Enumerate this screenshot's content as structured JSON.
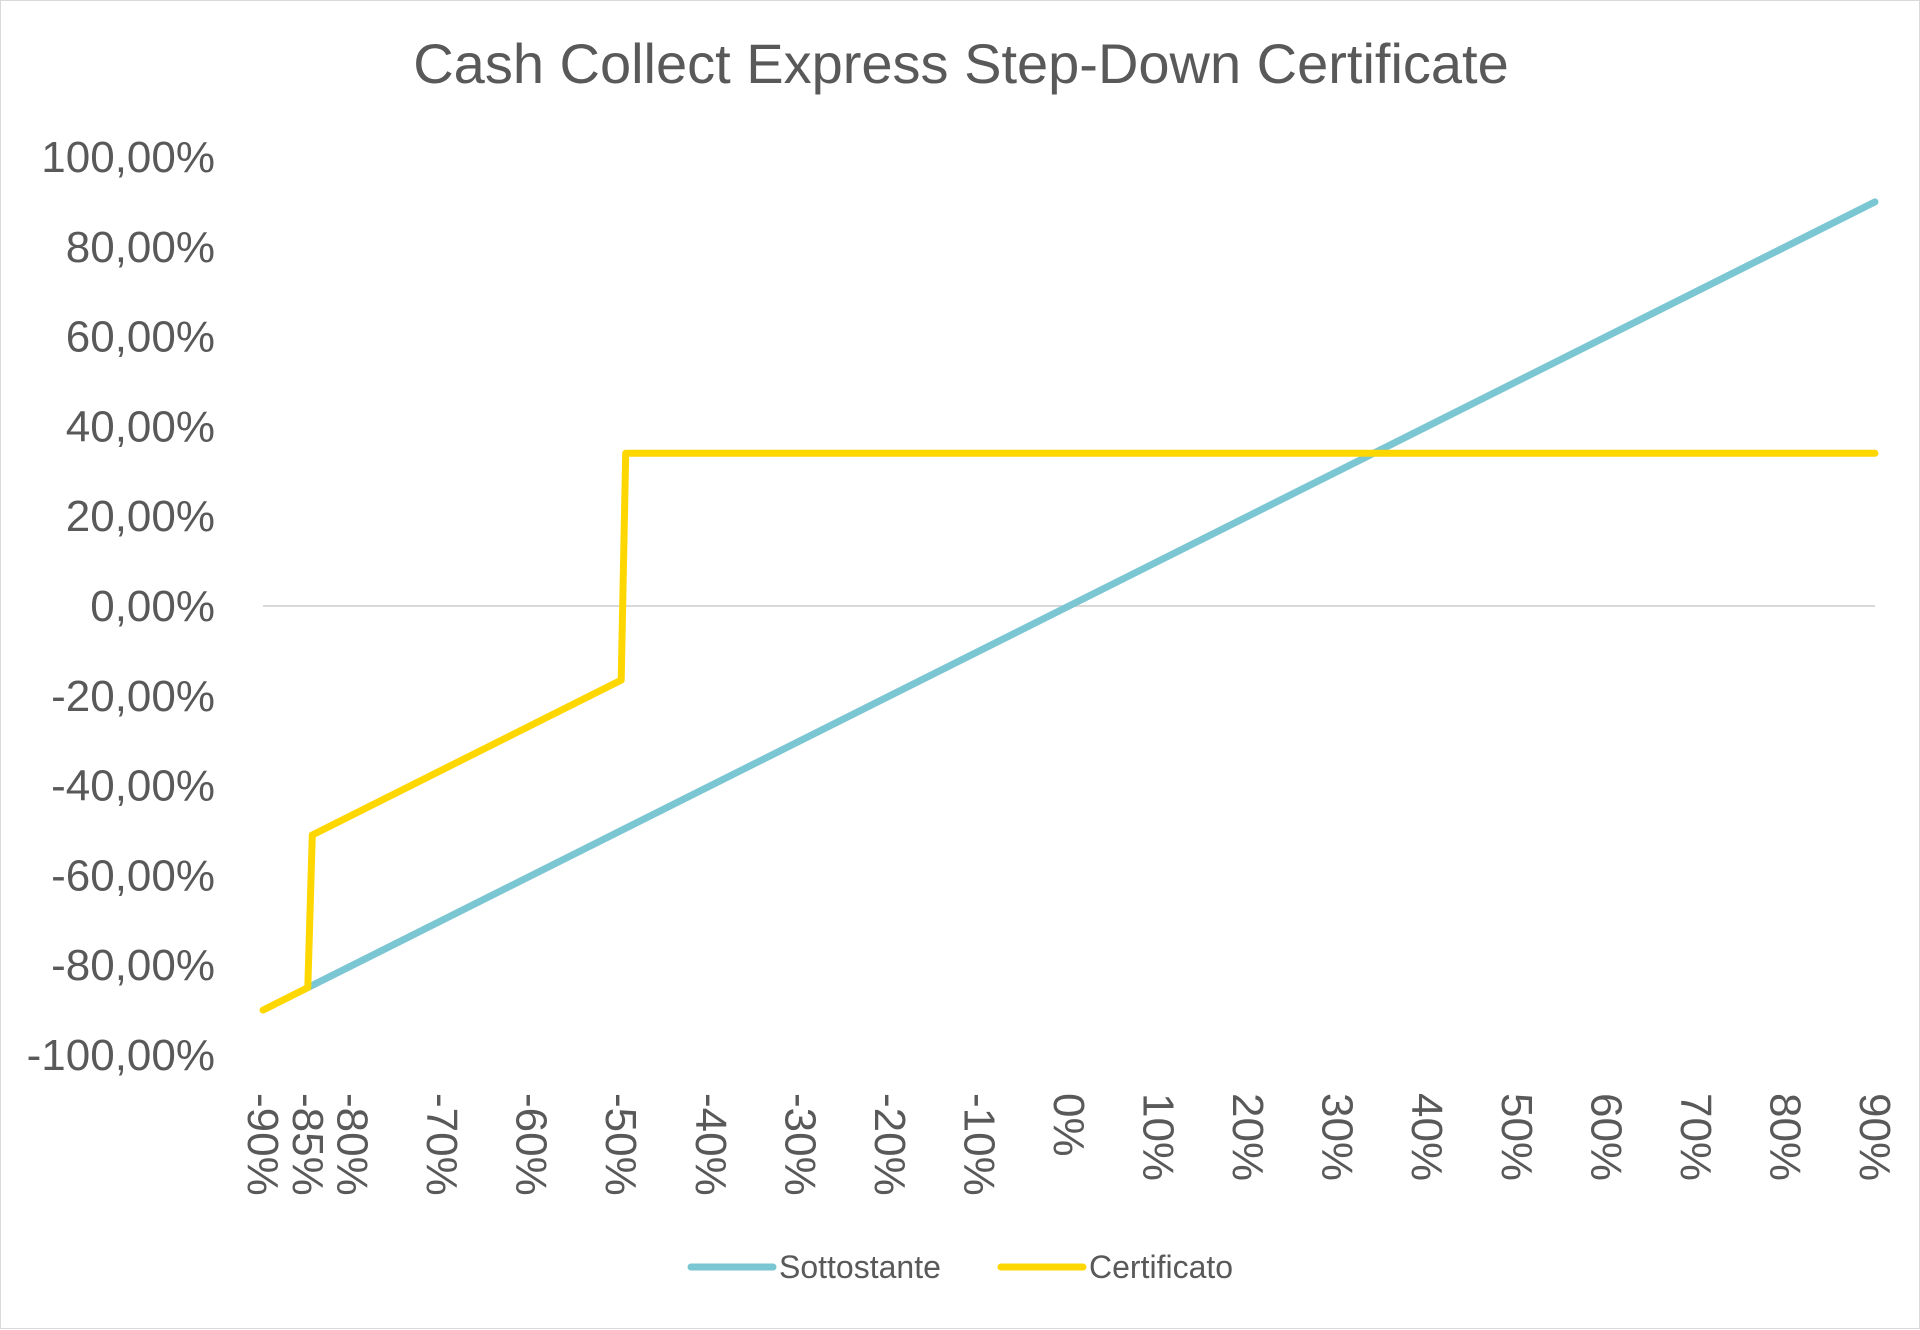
{
  "chart_data": {
    "type": "line",
    "title": "Cash Collect Express Step-Down Certificate",
    "x": [
      -90,
      -85,
      -84.5,
      -50,
      -49.5,
      90
    ],
    "x_tick_values": [
      -90,
      -85,
      -80,
      -70,
      -60,
      -50,
      -40,
      -30,
      -20,
      -10,
      0,
      10,
      20,
      30,
      40,
      50,
      60,
      70,
      80,
      90
    ],
    "x_tick_labels": [
      "-90%",
      "-85%",
      "-80%",
      "-70%",
      "-60%",
      "-50%",
      "-40%",
      "-30%",
      "-20%",
      "-10%",
      "0%",
      "10%",
      "20%",
      "30%",
      "40%",
      "50%",
      "60%",
      "70%",
      "80%",
      "90%"
    ],
    "xlim": [
      -90,
      90
    ],
    "y_tick_values": [
      100,
      80,
      60,
      40,
      20,
      0,
      -20,
      -40,
      -60,
      -80,
      -100
    ],
    "y_tick_labels": [
      "100,00%",
      "80,00%",
      "60,00%",
      "40,00%",
      "20,00%",
      "0,00%",
      "-20,00%",
      "-40,00%",
      "-60,00%",
      "-80,00%",
      "-100,00%"
    ],
    "ylim": [
      -100,
      100
    ],
    "series": [
      {
        "name": "Sottostante",
        "color": "#7AC6D2",
        "points": [
          [
            -85,
            -85
          ],
          [
            90,
            90
          ]
        ]
      },
      {
        "name": "Certificato",
        "color": "#FFD700",
        "points": [
          [
            -90,
            -90
          ],
          [
            -85,
            -85
          ],
          [
            -84.5,
            -51
          ],
          [
            -50,
            -16.5
          ],
          [
            -49.5,
            34
          ],
          [
            90,
            34
          ]
        ]
      }
    ],
    "grid": "zero-line",
    "legend": "bottom-center"
  }
}
